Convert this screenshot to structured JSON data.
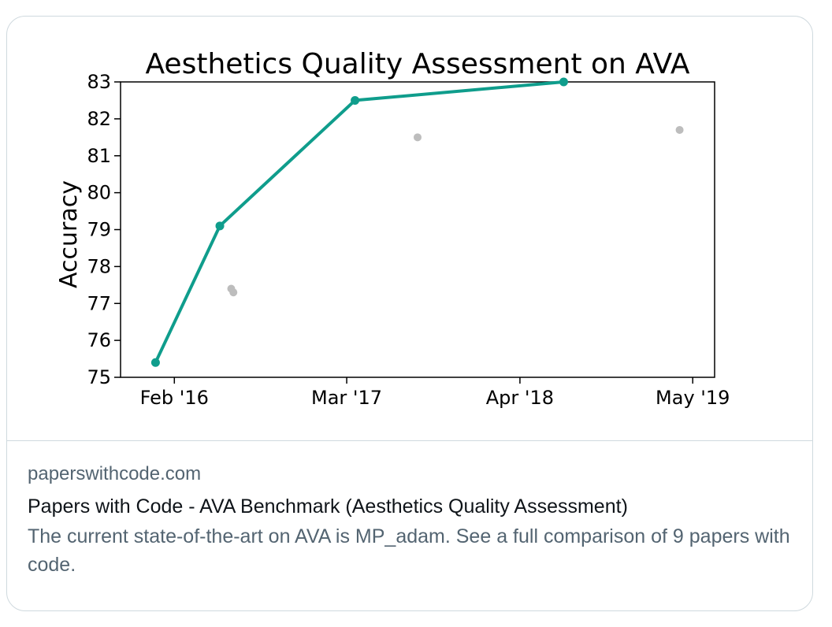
{
  "link_card": {
    "domain": "paperswithcode.com",
    "title": "Papers with Code - AVA Benchmark (Aesthetics Quality Assessment)",
    "description": "The current state-of-the-art on AVA is MP_adam. See a full comparison of 9 papers with code."
  },
  "chart_data": {
    "type": "line",
    "title": "Aesthetics Quality Assessment on AVA",
    "xlabel": "",
    "ylabel": "Accuracy",
    "ylim": [
      75,
      83
    ],
    "y_ticks": [
      75,
      76,
      77,
      78,
      79,
      80,
      81,
      82,
      83
    ],
    "x_ticks": [
      "Feb '16",
      "Mar '17",
      "Apr '18",
      "May '19"
    ],
    "x_range": [
      "2015-10-01",
      "2019-06-20"
    ],
    "x_tick_dates": [
      "2016-02-01",
      "2017-03-01",
      "2018-04-01",
      "2019-05-01"
    ],
    "grid": false,
    "series": [
      {
        "color": "#0f9d8c",
        "style": "line-with-markers",
        "points": [
          {
            "date": "2015-12-20",
            "value": 75.4
          },
          {
            "date": "2016-05-15",
            "value": 79.1
          },
          {
            "date": "2017-03-20",
            "value": 82.5
          },
          {
            "date": "2018-07-10",
            "value": 83.0
          }
        ]
      },
      {
        "color": "#bdbdbd",
        "style": "scatter",
        "points": [
          {
            "date": "2016-06-10",
            "value": 77.4
          },
          {
            "date": "2016-06-15",
            "value": 77.3
          },
          {
            "date": "2017-08-10",
            "value": 81.5
          },
          {
            "date": "2019-04-01",
            "value": 81.7
          }
        ]
      }
    ]
  }
}
